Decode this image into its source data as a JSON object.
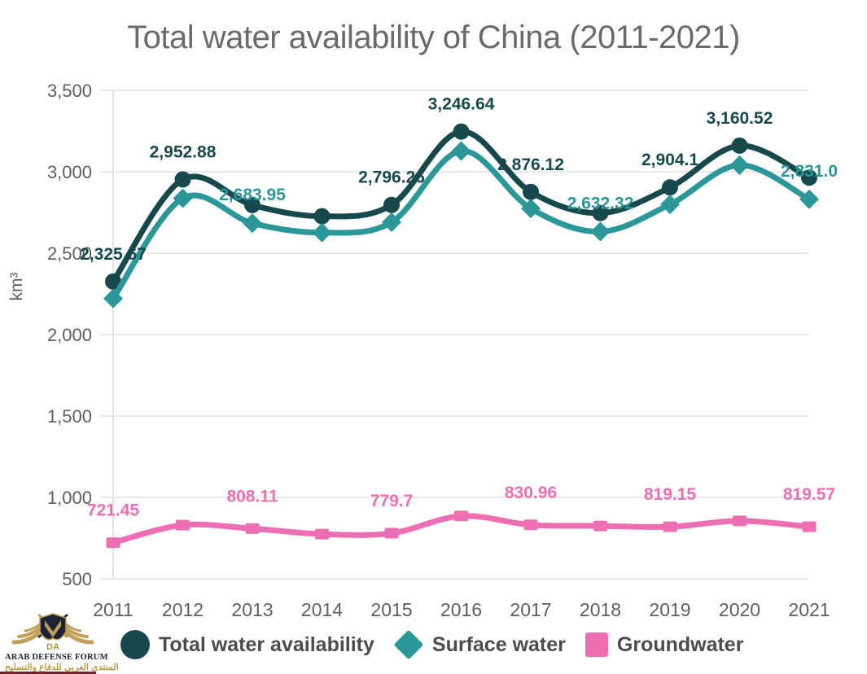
{
  "title": "Total water availability of China (2011-2021)",
  "chart_data": {
    "type": "line",
    "title": "Total water availability of China (2011-2021)",
    "xlabel": "",
    "ylabel": "km³",
    "ylim": [
      500,
      3500
    ],
    "y_ticks": [
      "3,500",
      "3,000",
      "2,500",
      "2,000",
      "1,500",
      "1,000",
      "500"
    ],
    "grid": true,
    "legend_position": "bottom",
    "categories": [
      "2011",
      "2012",
      "2013",
      "2014",
      "2015",
      "2016",
      "2017",
      "2018",
      "2019",
      "2020",
      "2021"
    ],
    "series": [
      {
        "name": "Total water availability",
        "color": "#17494c",
        "marker": "circle",
        "values": [
          2325.67,
          2952.88,
          2795.8,
          2726.7,
          2796.26,
          3246.64,
          2876.12,
          2746.2,
          2904.1,
          3160.52,
          2963.8
        ],
        "point_labels": [
          "2,325.67",
          "2,952.88",
          null,
          null,
          "2,796.26",
          "3,246.64",
          "2,876.12",
          null,
          "2,904.1",
          "3,160.52",
          null
        ]
      },
      {
        "name": "Surface water",
        "color": "#2b9798",
        "marker": "diamond",
        "values": [
          2221.4,
          2837.1,
          2683.95,
          2626.4,
          2690.1,
          3127.4,
          2774.6,
          2632.32,
          2799.3,
          3040.7,
          2831.0
        ],
        "point_labels": [
          null,
          null,
          "2,683.95",
          null,
          null,
          null,
          null,
          "2,632.32",
          null,
          null,
          "2,831.0"
        ]
      },
      {
        "name": "Groundwater",
        "color": "#ee6eb3",
        "marker": "square",
        "values": [
          721.45,
          829.6,
          808.11,
          774.5,
          779.7,
          885.5,
          830.96,
          824.65,
          819.15,
          855.35,
          819.57
        ],
        "point_labels": [
          "721.45",
          null,
          "808.11",
          null,
          "779.7",
          null,
          "830.96",
          null,
          "819.15",
          null,
          "819.57"
        ]
      }
    ]
  },
  "watermark": {
    "monogram": "DA",
    "line1": "ARAB DEFENSE FORUM",
    "line2": "المنتدى العربي للدفاع والتسليح"
  }
}
